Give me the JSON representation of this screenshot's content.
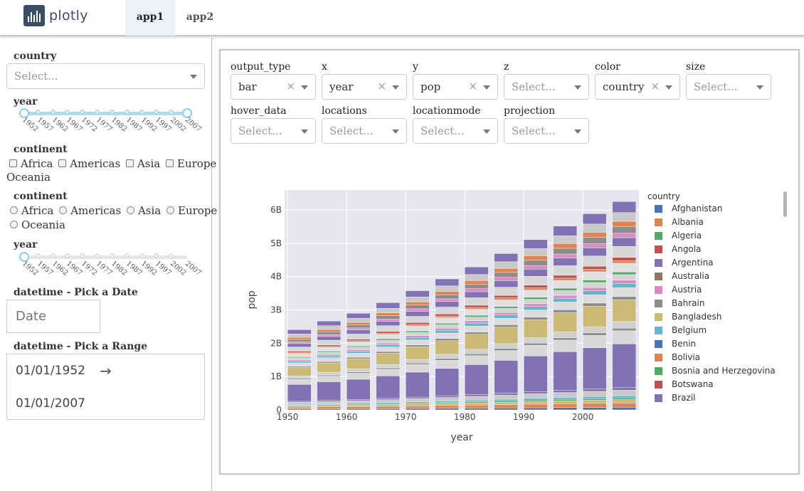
{
  "header": {
    "logo_text": "plotly",
    "tabs": [
      {
        "label": "app1",
        "active": true
      },
      {
        "label": "app2",
        "active": false
      }
    ]
  },
  "sidebar": {
    "country": {
      "label": "country",
      "placeholder": "Select..."
    },
    "year_slider": {
      "label": "year",
      "ticks": [
        "1952",
        "1957",
        "1962",
        "1967",
        "1972",
        "1977",
        "1982",
        "1987",
        "1992",
        "1997",
        "2002",
        "2007"
      ],
      "selected_range": [
        "1952",
        "2007"
      ]
    },
    "continent_checklist": {
      "label": "continent",
      "options": [
        "Africa",
        "Americas",
        "Asia",
        "Europe",
        "Oceania"
      ]
    },
    "continent_radio": {
      "label": "continent",
      "options": [
        "Africa",
        "Americas",
        "Asia",
        "Europe",
        "Oceania"
      ]
    },
    "year_slider2": {
      "label": "year",
      "ticks": [
        "1952",
        "1957",
        "1962",
        "1967",
        "1972",
        "1977",
        "1982",
        "1987",
        "1992",
        "1997",
        "2002",
        "2007"
      ]
    },
    "date_single": {
      "label": "datetime - Pick a Date",
      "placeholder": "Date"
    },
    "date_range": {
      "label": "datetime - Pick a Range",
      "start": "01/01/1952",
      "arrow": "→",
      "end": "01/01/2007"
    }
  },
  "controls": [
    {
      "label": "output_type",
      "value": "bar",
      "clearable": true
    },
    {
      "label": "x",
      "value": "year",
      "clearable": true
    },
    {
      "label": "y",
      "value": "pop",
      "clearable": true
    },
    {
      "label": "z",
      "value": "",
      "placeholder": "Select..."
    },
    {
      "label": "color",
      "value": "country",
      "clearable": true
    },
    {
      "label": "size",
      "value": "",
      "placeholder": "Select..."
    },
    {
      "label": "hover_data",
      "value": "",
      "placeholder": "Select..."
    },
    {
      "label": "locations",
      "value": "",
      "placeholder": "Select..."
    },
    {
      "label": "locationmode",
      "value": "",
      "placeholder": "Select..."
    },
    {
      "label": "projection",
      "value": "",
      "placeholder": "Select..."
    }
  ],
  "clear_glyph": "×",
  "chart_data": {
    "type": "bar",
    "stacked": true,
    "xlabel": "year",
    "ylabel": "pop",
    "x": [
      1952,
      1957,
      1962,
      1967,
      1972,
      1977,
      1982,
      1987,
      1992,
      1997,
      2002,
      2007
    ],
    "totals": [
      2406000000.0,
      2665000000.0,
      2900000000.0,
      3217000000.0,
      3577000000.0,
      3930000000.0,
      4289000000.0,
      4691000000.0,
      5110000000.0,
      5516000000.0,
      5887000000.0,
      6251000000.0
    ],
    "xlim": [
      1949.5,
      2009.5
    ],
    "ylim": [
      0,
      6600000000.0
    ],
    "xticks": [
      {
        "v": 1950,
        "label": "1950"
      },
      {
        "v": 1960,
        "label": "1960"
      },
      {
        "v": 1970,
        "label": "1970"
      },
      {
        "v": 1980,
        "label": "1980"
      },
      {
        "v": 1990,
        "label": "1990"
      },
      {
        "v": 2000,
        "label": "2000"
      }
    ],
    "yticks": [
      {
        "v": 0,
        "label": "0"
      },
      {
        "v": 1000000000.0,
        "label": "1B"
      },
      {
        "v": 2000000000.0,
        "label": "2B"
      },
      {
        "v": 3000000000.0,
        "label": "3B"
      },
      {
        "v": 4000000000.0,
        "label": "4B"
      },
      {
        "v": 5000000000.0,
        "label": "5B"
      },
      {
        "v": 6000000000.0,
        "label": "6B"
      }
    ],
    "grid": true,
    "legend": {
      "title": "country",
      "placement": "right",
      "items": [
        {
          "name": "Afghanistan",
          "color": "#4c72b0"
        },
        {
          "name": "Albania",
          "color": "#dd8452"
        },
        {
          "name": "Algeria",
          "color": "#55a868"
        },
        {
          "name": "Angola",
          "color": "#c44e52"
        },
        {
          "name": "Argentina",
          "color": "#8172b3"
        },
        {
          "name": "Australia",
          "color": "#937860"
        },
        {
          "name": "Austria",
          "color": "#da8bc3"
        },
        {
          "name": "Bahrain",
          "color": "#8c8c8c"
        },
        {
          "name": "Bangladesh",
          "color": "#ccb974"
        },
        {
          "name": "Belgium",
          "color": "#64b5cd"
        },
        {
          "name": "Benin",
          "color": "#4c72b0"
        },
        {
          "name": "Bolivia",
          "color": "#dd8452"
        },
        {
          "name": "Bosnia and Herzegovina",
          "color": "#55a868"
        },
        {
          "name": "Botswana",
          "color": "#c44e52"
        },
        {
          "name": "Brazil",
          "color": "#8172b3"
        }
      ]
    },
    "bg_color": "#e5e5ee"
  }
}
